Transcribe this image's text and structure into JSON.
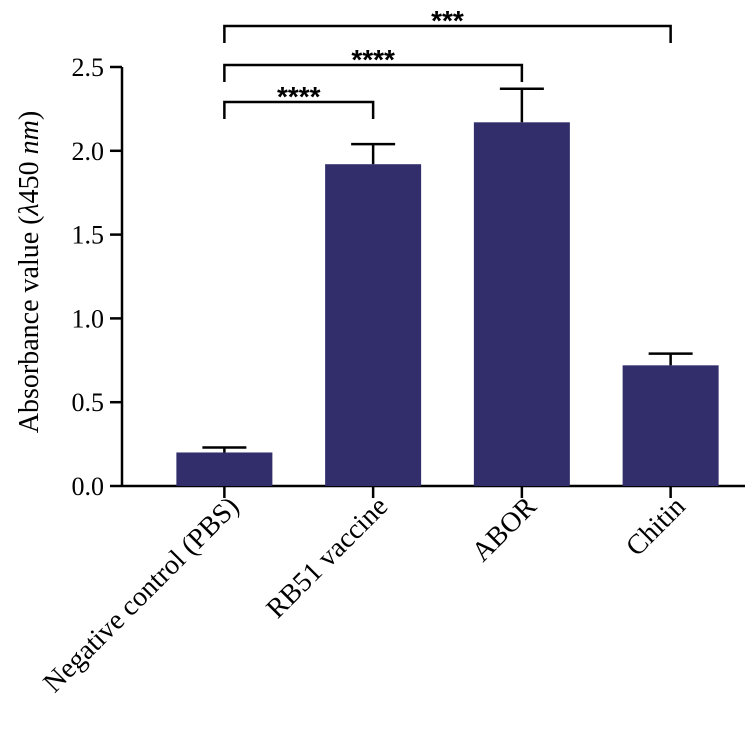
{
  "chart_data": {
    "type": "bar",
    "categories": [
      "Negative control (PBS)",
      "RB51 vaccine",
      "ABOR",
      "Chitin"
    ],
    "values": [
      0.2,
      1.92,
      2.17,
      0.72
    ],
    "errors": [
      0.03,
      0.12,
      0.2,
      0.07
    ],
    "bar_color": "#312e6b",
    "ylabel": "Absorbance value (λ450 nm)",
    "ylabel_parts": {
      "pre": "Absorbance value (",
      "lambda": "λ",
      "mid": "450 ",
      "unit": "nm",
      "post": ")"
    },
    "ylim": [
      0,
      2.5
    ],
    "yticks": [
      "0.0",
      "0.5",
      "1.0",
      "1.5",
      "2.0",
      "2.5"
    ],
    "significance": [
      {
        "from": 0,
        "to": 1,
        "label": "****"
      },
      {
        "from": 0,
        "to": 2,
        "label": "****"
      },
      {
        "from": 0,
        "to": 3,
        "label": "***"
      }
    ]
  }
}
